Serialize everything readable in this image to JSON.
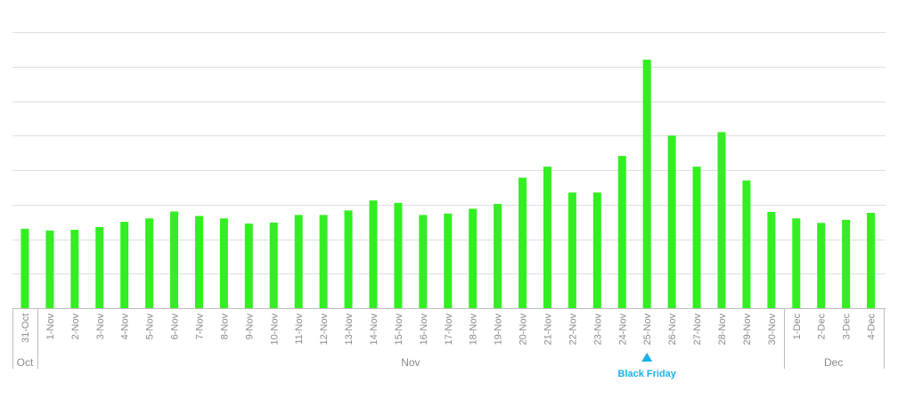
{
  "chart_data": {
    "type": "bar",
    "title": "",
    "xlabel": "",
    "ylabel": "",
    "ylim": [
      0,
      8
    ],
    "grid": true,
    "y_tick_labels_visible": false,
    "bar_color": "#33ee22",
    "categories": [
      "31-Oct",
      "1-Nov",
      "2-Nov",
      "3-Nov",
      "4-Nov",
      "5-Nov",
      "6-Nov",
      "7-Nov",
      "8-Nov",
      "9-Nov",
      "10-Nov",
      "11-Nov",
      "12-Nov",
      "13-Nov",
      "14-Nov",
      "15-Nov",
      "16-Nov",
      "17-Nov",
      "18-Nov",
      "19-Nov",
      "20-Nov",
      "21-Nov",
      "22-Nov",
      "23-Nov",
      "24-Nov",
      "25-Nov",
      "26-Nov",
      "27-Nov",
      "28-Nov",
      "29-Nov",
      "30-Nov",
      "1-Dec",
      "2-Dec",
      "3-Dec",
      "4-Dec"
    ],
    "values": [
      2.3,
      2.25,
      2.27,
      2.35,
      2.5,
      2.6,
      2.8,
      2.67,
      2.6,
      2.45,
      2.48,
      2.7,
      2.7,
      2.83,
      3.12,
      3.05,
      2.7,
      2.74,
      2.88,
      3.02,
      3.78,
      4.1,
      3.35,
      3.35,
      4.41,
      7.2,
      5.0,
      4.1,
      5.1,
      3.7,
      2.79,
      2.6,
      2.47,
      2.56,
      2.76
    ],
    "month_groups": [
      {
        "label": "Oct",
        "start": 0,
        "end": 0
      },
      {
        "label": "Nov",
        "start": 1,
        "end": 30
      },
      {
        "label": "Dec",
        "start": 31,
        "end": 34
      }
    ],
    "annotation": {
      "text": "Black Friday",
      "category": "25-Nov",
      "color": "#1ab0e8"
    }
  }
}
